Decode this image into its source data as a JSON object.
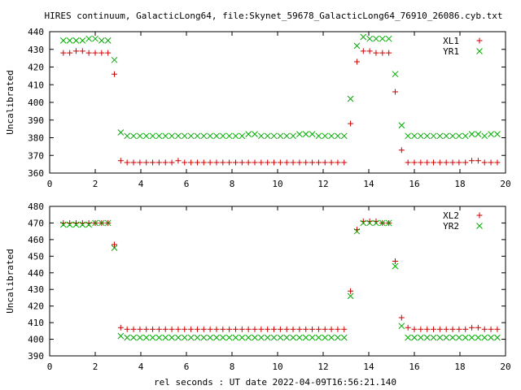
{
  "title": "HIRES continuum, GalacticLong64, file:Skynet_59678_GalacticLong64_76910_26086.cyb.txt",
  "xlabel": "rel seconds : UT date 2022-04-09T16:56:21.140",
  "colors": {
    "series_a": "#cc0000",
    "series_b": "#00aa00"
  },
  "chart_data": [
    {
      "type": "scatter",
      "ylabel": "Uncalibrated",
      "xlim": [
        0,
        20
      ],
      "ylim": [
        360,
        440
      ],
      "xticks": [
        0,
        2,
        4,
        6,
        8,
        10,
        12,
        14,
        16,
        18,
        20
      ],
      "yticks": [
        360,
        370,
        380,
        390,
        400,
        410,
        420,
        430,
        440
      ],
      "legend_position": "top-right",
      "series": [
        {
          "name": "XL1",
          "marker": "plus",
          "color": "#cc0000",
          "x": [
            0.6,
            0.88,
            1.16,
            1.44,
            1.72,
            2.0,
            2.28,
            2.56,
            2.84,
            3.12,
            3.4,
            3.68,
            3.96,
            4.24,
            4.52,
            4.8,
            5.08,
            5.36,
            5.64,
            5.92,
            6.2,
            6.48,
            6.76,
            7.04,
            7.32,
            7.6,
            7.88,
            8.16,
            8.44,
            8.72,
            9.0,
            9.28,
            9.56,
            9.84,
            10.12,
            10.4,
            10.68,
            10.96,
            11.24,
            11.52,
            11.8,
            12.08,
            12.36,
            12.64,
            12.92,
            13.2,
            13.48,
            13.76,
            14.04,
            14.32,
            14.6,
            14.88,
            15.16,
            15.44,
            15.72,
            16.0,
            16.28,
            16.56,
            16.84,
            17.12,
            17.4,
            17.68,
            17.96,
            18.24,
            18.52,
            18.8,
            19.08,
            19.36,
            19.64
          ],
          "y": [
            428,
            428,
            429,
            429,
            428,
            428,
            428,
            428,
            416,
            367,
            366,
            366,
            366,
            366,
            366,
            366,
            366,
            366,
            367,
            366,
            366,
            366,
            366,
            366,
            366,
            366,
            366,
            366,
            366,
            366,
            366,
            366,
            366,
            366,
            366,
            366,
            366,
            366,
            366,
            366,
            366,
            366,
            366,
            366,
            366,
            388,
            423,
            429,
            429,
            428,
            428,
            428,
            406,
            373,
            366,
            366,
            366,
            366,
            366,
            366,
            366,
            366,
            366,
            366,
            367,
            367,
            366,
            366,
            366
          ],
          "x_actual": [
            0.6,
            0.88,
            1.16,
            1.44,
            1.72,
            2.0,
            2.28,
            2.56,
            2.84,
            3.12,
            3.4,
            3.68,
            3.96,
            4.24,
            4.52,
            4.8,
            5.08,
            5.36,
            5.64,
            5.92,
            6.2,
            6.48,
            6.76,
            7.04,
            7.32,
            7.6,
            7.88,
            8.16,
            8.44,
            8.72,
            9.0,
            9.28,
            9.56,
            9.84,
            10.12,
            10.4,
            10.68,
            10.96,
            11.24,
            11.52,
            11.8,
            12.08,
            12.36,
            12.64,
            12.92,
            13.2,
            13.48,
            13.76,
            14.04,
            14.32,
            14.6,
            14.88,
            15.16,
            15.44,
            15.72,
            16.0,
            16.28,
            16.56,
            16.84,
            17.12,
            17.4,
            17.68,
            17.96,
            18.24,
            18.52,
            18.8,
            19.08,
            19.36,
            19.64
          ]
        },
        {
          "name": "YR1",
          "marker": "cross",
          "color": "#00aa00",
          "x": [
            0.6,
            0.88,
            1.16,
            1.44,
            1.72,
            2.0,
            2.28,
            2.56,
            2.84,
            3.12,
            3.4,
            3.68,
            3.96,
            4.24,
            4.52,
            4.8,
            5.08,
            5.36,
            5.64,
            5.92,
            6.2,
            6.48,
            6.76,
            7.04,
            7.32,
            7.6,
            7.88,
            8.16,
            8.44,
            8.72,
            9.0,
            9.28,
            9.56,
            9.84,
            10.12,
            10.4,
            10.68,
            10.96,
            11.24,
            11.52,
            11.8,
            12.08,
            12.36,
            12.64,
            12.92,
            13.2,
            13.48,
            13.76,
            14.04,
            14.32,
            14.6,
            14.88,
            15.16,
            15.44,
            15.72,
            16.0,
            16.28,
            16.56,
            16.84,
            17.12,
            17.4,
            17.68,
            17.96,
            18.24,
            18.52,
            18.8,
            19.08,
            19.36,
            19.64
          ],
          "y": [
            435,
            435,
            435,
            435,
            436,
            436,
            435,
            435,
            424,
            383,
            381,
            381,
            381,
            381,
            381,
            381,
            381,
            381,
            381,
            381,
            381,
            381,
            381,
            381,
            381,
            381,
            381,
            381,
            381,
            382,
            382,
            381,
            381,
            381,
            381,
            381,
            381,
            382,
            382,
            382,
            381,
            381,
            381,
            381,
            381,
            402,
            432,
            437,
            436,
            436,
            436,
            436,
            416,
            387,
            381,
            381,
            381,
            381,
            381,
            381,
            381,
            381,
            381,
            381,
            382,
            382,
            381,
            382,
            382
          ]
        }
      ]
    },
    {
      "type": "scatter",
      "ylabel": "Uncalibrated",
      "xlim": [
        0,
        20
      ],
      "ylim": [
        390,
        480
      ],
      "xticks": [
        0,
        2,
        4,
        6,
        8,
        10,
        12,
        14,
        16,
        18,
        20
      ],
      "yticks": [
        390,
        400,
        410,
        420,
        430,
        440,
        450,
        460,
        470,
        480
      ],
      "legend_position": "top-right",
      "series": [
        {
          "name": "XL2",
          "marker": "plus",
          "color": "#cc0000",
          "x": [
            0.6,
            0.88,
            1.16,
            1.44,
            1.72,
            2.0,
            2.28,
            2.56,
            2.84,
            3.12,
            3.4,
            3.68,
            3.96,
            4.24,
            4.52,
            4.8,
            5.08,
            5.36,
            5.64,
            5.92,
            6.2,
            6.48,
            6.76,
            7.04,
            7.32,
            7.6,
            7.88,
            8.16,
            8.44,
            8.72,
            9.0,
            9.28,
            9.56,
            9.84,
            10.12,
            10.4,
            10.68,
            10.96,
            11.24,
            11.52,
            11.8,
            12.08,
            12.36,
            12.64,
            12.92,
            13.2,
            13.48,
            13.76,
            14.04,
            14.32,
            14.6,
            14.88,
            15.16,
            15.44,
            15.72,
            16.0,
            16.28,
            16.56,
            16.84,
            17.12,
            17.4,
            17.68,
            17.96,
            18.24,
            18.52,
            18.8,
            19.08,
            19.36,
            19.64
          ],
          "y": [
            470,
            470,
            470,
            470,
            470,
            470,
            470,
            470,
            457,
            407,
            406,
            406,
            406,
            406,
            406,
            406,
            406,
            406,
            406,
            406,
            406,
            406,
            406,
            406,
            406,
            406,
            406,
            406,
            406,
            406,
            406,
            406,
            406,
            406,
            406,
            406,
            406,
            406,
            406,
            406,
            406,
            406,
            406,
            406,
            406,
            429,
            466,
            471,
            471,
            471,
            470,
            470,
            447,
            413,
            407,
            406,
            406,
            406,
            406,
            406,
            406,
            406,
            406,
            406,
            407,
            407,
            406,
            406,
            406
          ]
        },
        {
          "name": "YR2",
          "marker": "cross",
          "color": "#00aa00",
          "x": [
            0.6,
            0.88,
            1.16,
            1.44,
            1.72,
            2.0,
            2.28,
            2.56,
            2.84,
            3.12,
            3.4,
            3.68,
            3.96,
            4.24,
            4.52,
            4.8,
            5.08,
            5.36,
            5.64,
            5.92,
            6.2,
            6.48,
            6.76,
            7.04,
            7.32,
            7.6,
            7.88,
            8.16,
            8.44,
            8.72,
            9.0,
            9.28,
            9.56,
            9.84,
            10.12,
            10.4,
            10.68,
            10.96,
            11.24,
            11.52,
            11.8,
            12.08,
            12.36,
            12.64,
            12.92,
            13.2,
            13.48,
            13.76,
            14.04,
            14.32,
            14.6,
            14.88,
            15.16,
            15.44,
            15.72,
            16.0,
            16.28,
            16.56,
            16.84,
            17.12,
            17.4,
            17.68,
            17.96,
            18.24,
            18.52,
            18.8,
            19.08,
            19.36,
            19.64
          ],
          "y": [
            469,
            469,
            469,
            469,
            469,
            470,
            470,
            470,
            455,
            402,
            401,
            401,
            401,
            401,
            401,
            401,
            401,
            401,
            401,
            401,
            401,
            401,
            401,
            401,
            401,
            401,
            401,
            401,
            401,
            401,
            401,
            401,
            401,
            401,
            401,
            401,
            401,
            401,
            401,
            401,
            401,
            401,
            401,
            401,
            401,
            426,
            465,
            470,
            470,
            470,
            470,
            470,
            444,
            408,
            401,
            401,
            401,
            401,
            401,
            401,
            401,
            401,
            401,
            401,
            401,
            401,
            401,
            401,
            401
          ]
        }
      ]
    }
  ]
}
